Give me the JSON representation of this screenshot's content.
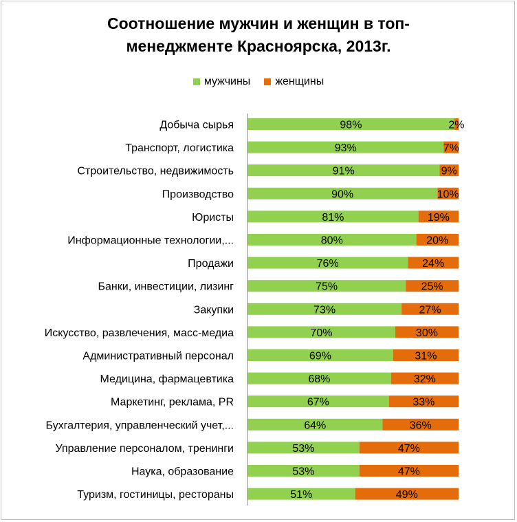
{
  "chart_data": {
    "type": "bar",
    "orientation": "horizontal",
    "stacked": true,
    "title": "Соотношение мужчин и женщин в топ-менеджменте Красноярска, 2013г.",
    "title_lines": [
      "Соотношение мужчин и женщин в топ-",
      "менеджменте Красноярска, 2013г."
    ],
    "legend_position": "top",
    "categories": [
      "Добыча сырья",
      "Транспорт, логистика",
      "Строительство, недвижимость",
      "Производство",
      "Юристы",
      "Информационные технологии,...",
      "Продажи",
      "Банки, инвестиции, лизинг",
      "Закупки",
      "Искусство, развлечения, масс-медиа",
      "Административный персонал",
      "Медицина, фармацевтика",
      "Маркетинг, реклама, PR",
      "Бухгалтерия, управленческий учет,...",
      "Управление персоналом, тренинги",
      "Наука, образование",
      "Туризм, гостиницы, рестораны"
    ],
    "series": [
      {
        "name": "мужчины",
        "color": "#92d050",
        "values": [
          98,
          93,
          91,
          90,
          81,
          80,
          76,
          75,
          73,
          70,
          69,
          68,
          67,
          64,
          53,
          53,
          51
        ]
      },
      {
        "name": "женщины",
        "color": "#e46c0a",
        "values": [
          2,
          7,
          9,
          10,
          19,
          20,
          24,
          25,
          27,
          30,
          31,
          32,
          33,
          36,
          47,
          47,
          49
        ]
      }
    ],
    "value_suffix": "%",
    "xlim": [
      0,
      100
    ],
    "grid": false
  }
}
